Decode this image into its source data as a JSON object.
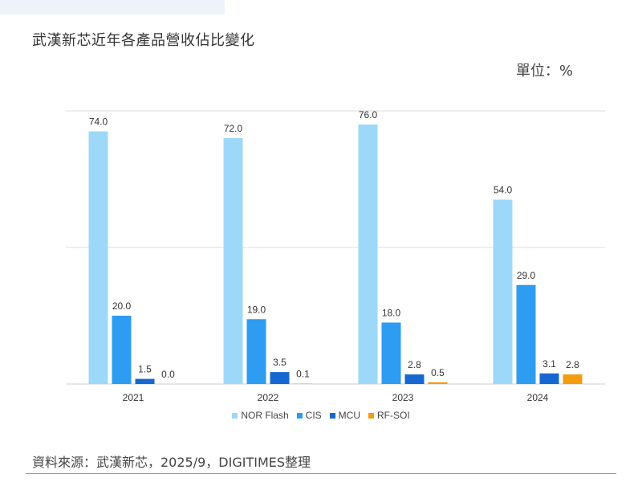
{
  "title": "武漢新芯近年各產品營收佔比變化",
  "unit": "單位：%",
  "source": "資料來源：武漢新芯，2025/9，DIGITIMES整理",
  "chart_data": {
    "type": "bar",
    "categories": [
      "2021",
      "2022",
      "2023",
      "2024"
    ],
    "series": [
      {
        "name": "NOR Flash",
        "values": [
          74.0,
          72.0,
          76.0,
          54.0
        ],
        "color": "#9dd8f8"
      },
      {
        "name": "CIS",
        "values": [
          20.0,
          19.0,
          18.0,
          29.0
        ],
        "color": "#2e9cf0"
      },
      {
        "name": "MCU",
        "values": [
          1.5,
          3.5,
          2.8,
          3.1
        ],
        "color": "#1668d0"
      },
      {
        "name": "RF-SOI",
        "values": [
          0.0,
          0.1,
          0.5,
          2.8
        ],
        "color": "#f29c0f"
      }
    ],
    "data_labels": [
      [
        "74.0",
        "20.0",
        "1.5",
        "0.0"
      ],
      [
        "72.0",
        "19.0",
        "3.5",
        "0.1"
      ],
      [
        "76.0",
        "18.0",
        "2.8",
        "0.5"
      ],
      [
        "54.0",
        "29.0",
        "3.1",
        "2.8"
      ]
    ],
    "ylim": [
      0,
      80
    ],
    "grid": true,
    "legend_position": "bottom"
  }
}
